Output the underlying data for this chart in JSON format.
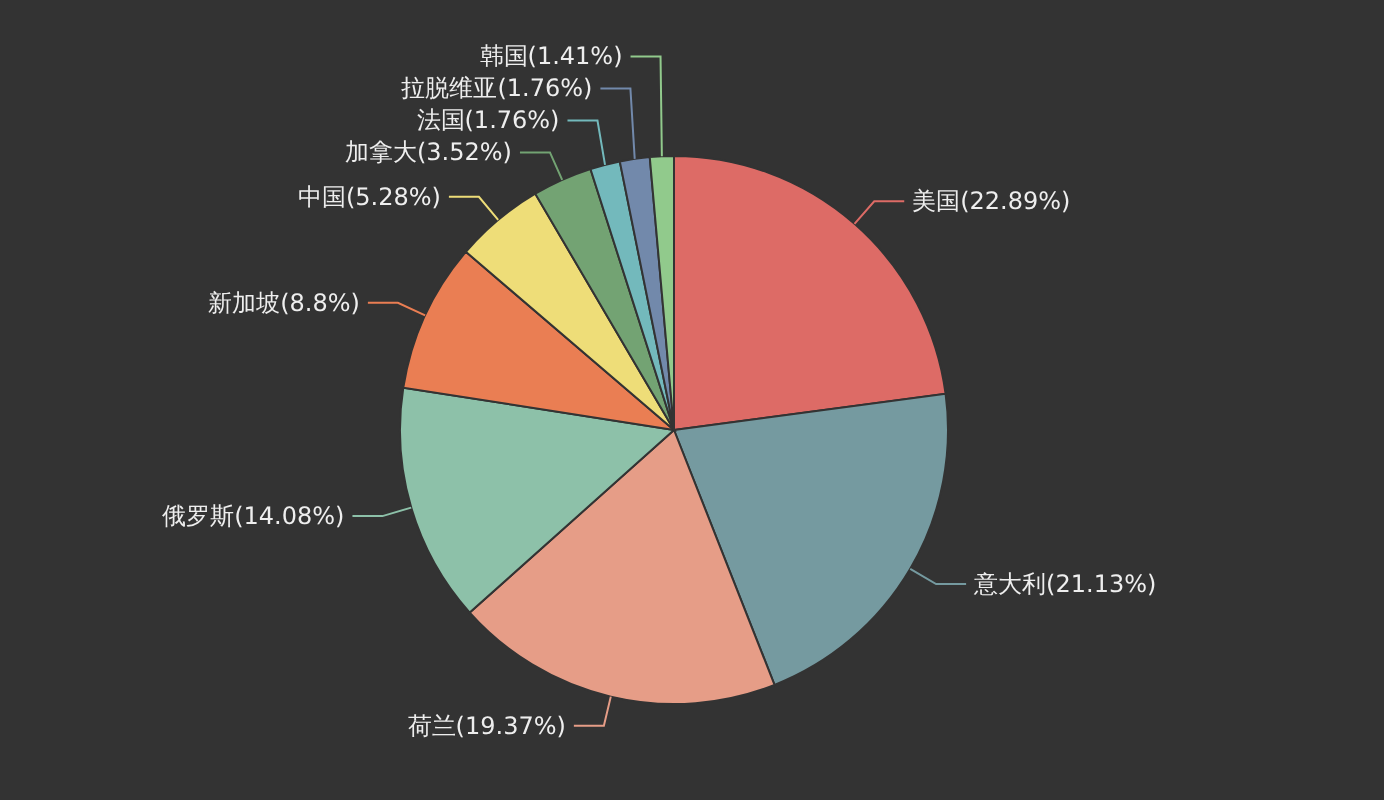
{
  "chart_data": {
    "type": "pie",
    "categories": [
      "美国",
      "意大利",
      "荷兰",
      "俄罗斯",
      "新加坡",
      "中国",
      "加拿大",
      "法国",
      "拉脱维亚",
      "韩国"
    ],
    "values": [
      22.89,
      21.13,
      19.37,
      14.08,
      8.8,
      5.28,
      3.52,
      1.76,
      1.76,
      1.41
    ],
    "value_labels": [
      "(22.89%)",
      "(21.13%)",
      "(19.37%)",
      "(14.08%)",
      "(8.8%)",
      "(5.28%)",
      "(3.52%)",
      "(1.76%)",
      "(1.76%)",
      "(1.41%)"
    ],
    "colors": [
      "#dd6b66",
      "#759aa0",
      "#e69d87",
      "#8dc1a9",
      "#ea7e53",
      "#eedd78",
      "#73a373",
      "#73b9bc",
      "#7289ab",
      "#91ca8c"
    ]
  }
}
